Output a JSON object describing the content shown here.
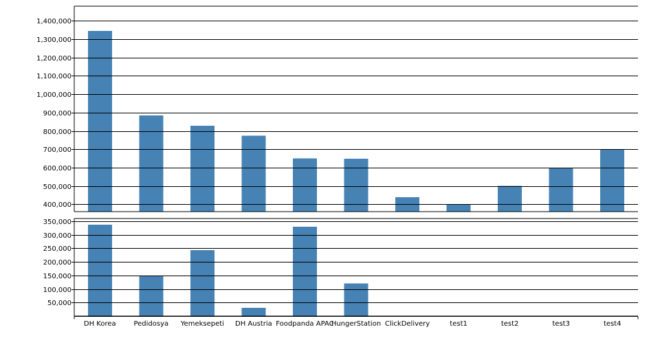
{
  "chart_data": [
    {
      "type": "bar",
      "title": "",
      "xlabel": "",
      "ylabel": "",
      "panel": "upper",
      "ylim": [
        360000,
        1480000
      ],
      "yticks": [
        400000,
        500000,
        600000,
        700000,
        800000,
        900000,
        1000000,
        1100000,
        1200000,
        1300000,
        1400000
      ],
      "ytick_labels": [
        "400,000",
        "500,000",
        "600,000",
        "700,000",
        "800,000",
        "900,000",
        "1,000,000",
        "1,100,000",
        "1,200,000",
        "1,300,000",
        "1,400,000"
      ],
      "grid": true,
      "categories": [
        "DH Korea",
        "Pedidosya",
        "Yemeksepeti",
        "DH Austria",
        "Foodpanda APAC",
        "HungerStation",
        "ClickDelivery",
        "test1",
        "test2",
        "test3",
        "test4"
      ],
      "values": [
        1345000,
        885000,
        828000,
        773000,
        650000,
        648000,
        438000,
        400000,
        500000,
        600000,
        700000
      ],
      "color": "#4682b4"
    },
    {
      "type": "bar",
      "title": "",
      "xlabel": "",
      "ylabel": "",
      "panel": "lower",
      "ylim": [
        0,
        360000
      ],
      "yticks": [
        50000,
        100000,
        150000,
        200000,
        250000,
        300000,
        350000
      ],
      "ytick_labels": [
        "50,000",
        "100,000",
        "150,000",
        "200,000",
        "250,000",
        "300,000",
        "350,000"
      ],
      "grid": true,
      "categories": [
        "DH Korea",
        "Pedidosya",
        "Yemeksepeti",
        "DH Austria",
        "Foodpanda APAC",
        "HungerStation",
        "ClickDelivery",
        "test1",
        "test2",
        "test3",
        "test4"
      ],
      "values": [
        337000,
        150000,
        244000,
        30000,
        330000,
        120000,
        0,
        0,
        0,
        0,
        0
      ],
      "color": "#4682b4"
    }
  ]
}
